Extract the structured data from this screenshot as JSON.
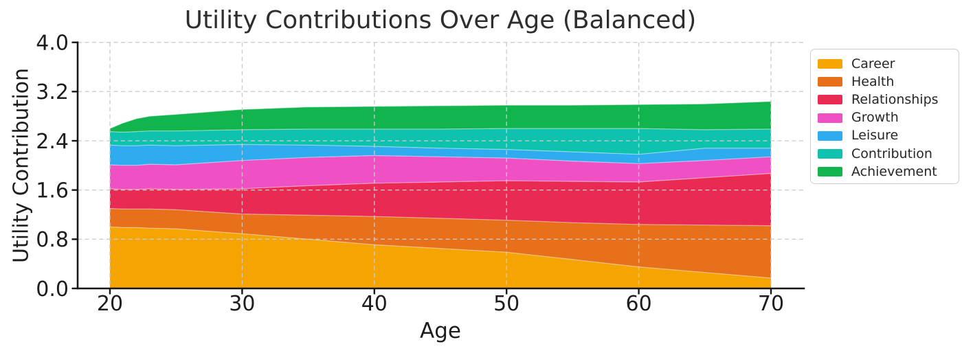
{
  "chart_data": {
    "type": "area",
    "stacked": true,
    "title": "Utility Contributions Over Age (Balanced)",
    "xlabel": "Age",
    "ylabel": "Utility Contribution",
    "x": [
      20,
      21,
      22,
      23,
      25,
      30,
      35,
      40,
      45,
      50,
      55,
      60,
      65,
      70
    ],
    "series": [
      {
        "name": "Career",
        "color": "#F5A402",
        "values": [
          1.0,
          0.99,
          0.99,
          0.98,
          0.97,
          0.89,
          0.8,
          0.71,
          0.65,
          0.59,
          0.47,
          0.35,
          0.26,
          0.17
        ]
      },
      {
        "name": "Health",
        "color": "#E8701B",
        "values": [
          0.3,
          0.3,
          0.3,
          0.31,
          0.31,
          0.32,
          0.39,
          0.46,
          0.49,
          0.52,
          0.6,
          0.69,
          0.77,
          0.85
        ]
      },
      {
        "name": "Relationships",
        "color": "#E92A52",
        "values": [
          0.32,
          0.32,
          0.32,
          0.33,
          0.33,
          0.41,
          0.48,
          0.54,
          0.59,
          0.64,
          0.67,
          0.69,
          0.77,
          0.85
        ]
      },
      {
        "name": "Growth",
        "color": "#EF51C5",
        "values": [
          0.39,
          0.39,
          0.39,
          0.4,
          0.4,
          0.46,
          0.46,
          0.45,
          0.41,
          0.37,
          0.33,
          0.3,
          0.28,
          0.27
        ]
      },
      {
        "name": "Leisure",
        "color": "#2FACF0",
        "values": [
          0.32,
          0.32,
          0.32,
          0.31,
          0.31,
          0.26,
          0.2,
          0.15,
          0.14,
          0.14,
          0.15,
          0.15,
          0.2,
          0.14
        ]
      },
      {
        "name": "Contribution",
        "color": "#0FC2AE",
        "values": [
          0.22,
          0.22,
          0.23,
          0.23,
          0.24,
          0.24,
          0.26,
          0.28,
          0.31,
          0.34,
          0.38,
          0.42,
          0.3,
          0.31
        ]
      },
      {
        "name": "Achievement",
        "color": "#12B44E",
        "values": [
          0.05,
          0.15,
          0.21,
          0.24,
          0.27,
          0.33,
          0.36,
          0.37,
          0.38,
          0.38,
          0.38,
          0.39,
          0.42,
          0.45
        ]
      }
    ],
    "xticks": [
      20,
      30,
      40,
      50,
      60,
      70
    ],
    "yticks": [
      0.0,
      0.8,
      1.6,
      2.4,
      3.2,
      4.0
    ],
    "ylim": [
      0.0,
      4.0
    ],
    "xlim": [
      17.6,
      72.5
    ],
    "grid": true,
    "grid_style": "dashed",
    "grid_color": "#cbcbcb",
    "axis_color": "#161616",
    "tick_label_color": "#1d1d1d",
    "legend_position": "outside-right",
    "legend_border_color": "#cccccc"
  }
}
